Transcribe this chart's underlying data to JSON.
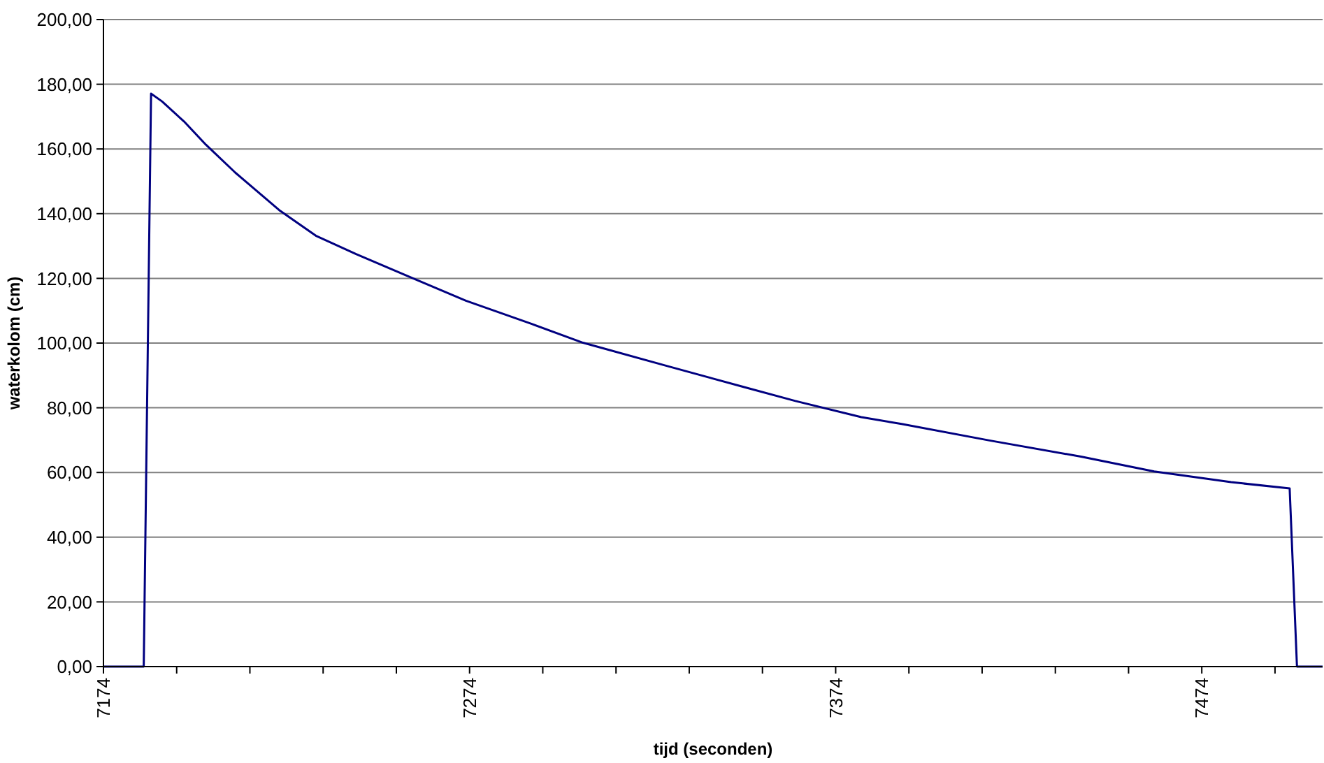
{
  "chart_data": {
    "type": "line",
    "xlabel": "tijd (seconden)",
    "ylabel": "waterkolom (cm)",
    "x": [
      7174,
      7185,
      7187,
      7190,
      7196,
      7202,
      7210,
      7222,
      7232,
      7243,
      7258,
      7273,
      7291,
      7305,
      7328,
      7349,
      7363,
      7381,
      7392,
      7416,
      7441,
      7461,
      7482,
      7498,
      7500,
      7507
    ],
    "series": [
      {
        "color": "#000080",
        "values": [
          0,
          0,
          177.1,
          174.7,
          168.5,
          161.3,
          152.7,
          141.1,
          133.2,
          127.5,
          120.3,
          113.1,
          105.9,
          100.1,
          92.9,
          86.4,
          82.1,
          77.1,
          75.0,
          69.9,
          64.9,
          60.3,
          57.0,
          55.1,
          0,
          0
        ]
      }
    ],
    "xlim": [
      7174,
      7507
    ],
    "xticks": [
      7174,
      {
        "value": 7194,
        "label": null
      },
      {
        "value": 7214,
        "label": null
      },
      {
        "value": 7234,
        "label": null
      },
      {
        "value": 7254,
        "label": null
      },
      7274,
      {
        "value": 7294,
        "label": null
      },
      {
        "value": 7314,
        "label": null
      },
      {
        "value": 7334,
        "label": null
      },
      {
        "value": 7354,
        "label": null
      },
      7374,
      {
        "value": 7394,
        "label": null
      },
      {
        "value": 7414,
        "label": null
      },
      {
        "value": 7434,
        "label": null
      },
      {
        "value": 7454,
        "label": null
      },
      7474,
      {
        "value": 7494,
        "label": null
      }
    ],
    "ylim": [
      0,
      200
    ],
    "yticks": [
      {
        "value": 0,
        "label": "0,00"
      },
      {
        "value": 20,
        "label": "20,00"
      },
      {
        "value": 40,
        "label": "40,00"
      },
      {
        "value": 60,
        "label": "60,00"
      },
      {
        "value": 80,
        "label": "80,00"
      },
      {
        "value": 100,
        "label": "100,00"
      },
      {
        "value": 120,
        "label": "120,00"
      },
      {
        "value": 140,
        "label": "140,00"
      },
      {
        "value": 160,
        "label": "160,00"
      },
      {
        "value": 180,
        "label": "180,00"
      },
      {
        "value": 200,
        "label": "200,00"
      }
    ],
    "grid": "y",
    "marker": "none",
    "line_style": "solid"
  }
}
